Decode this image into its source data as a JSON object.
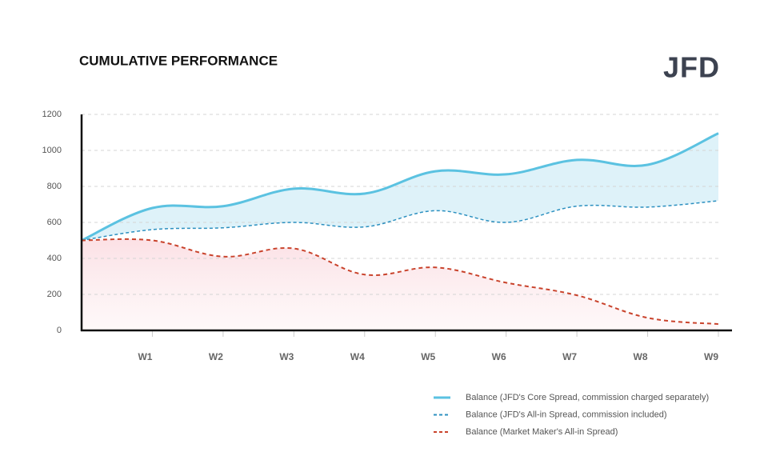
{
  "chart_data": {
    "type": "line",
    "title": "CUMULATIVE PERFORMANCE",
    "logo": "JFD",
    "categories": [
      null,
      "W1",
      "W2",
      "W3",
      "W4",
      "W5",
      "W6",
      "W7",
      "W8",
      "W9"
    ],
    "series": [
      {
        "name": "Balance (JFD's Core Spread, commission charged separately)",
        "color": "#5bc2e1",
        "dash": "solid",
        "values": [
          500,
          680,
          690,
          787,
          760,
          884,
          867,
          947,
          920,
          1095
        ]
      },
      {
        "name": "Balance (JFD's All-in Spread, commission included)",
        "color": "#2c90c0",
        "dash": "dashed",
        "values": [
          500,
          560,
          570,
          600,
          575,
          665,
          600,
          690,
          685,
          720
        ]
      },
      {
        "name": "Balance (Market Maker's All-in Spread)",
        "color": "#c9432c",
        "dash": "dashed",
        "values": [
          500,
          500,
          410,
          455,
          310,
          350,
          265,
          195,
          70,
          35
        ]
      }
    ],
    "ylim": [
      0,
      1200
    ],
    "yticks": [
      0,
      200,
      400,
      600,
      800,
      1000,
      1200
    ],
    "grid": true
  }
}
